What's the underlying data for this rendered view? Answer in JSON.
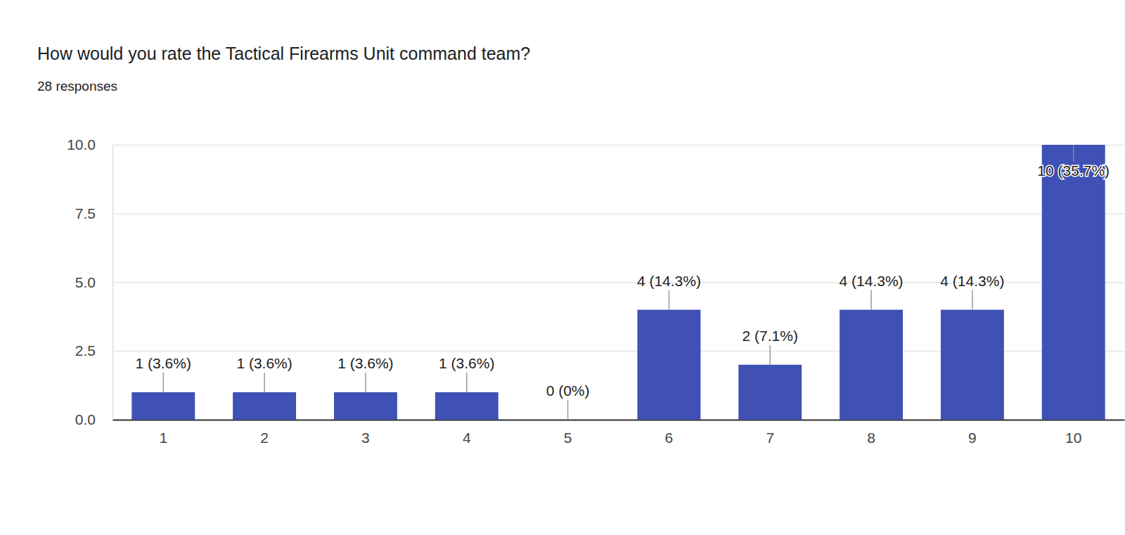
{
  "chart_data": {
    "type": "bar",
    "title": "How would you rate the Tactical Firearms Unit command team?",
    "subtitle": "28 responses",
    "categories": [
      "1",
      "2",
      "3",
      "4",
      "5",
      "6",
      "7",
      "8",
      "9",
      "10"
    ],
    "values": [
      1,
      1,
      1,
      1,
      0,
      4,
      2,
      4,
      4,
      10
    ],
    "value_labels": [
      "1 (3.6%)",
      "1 (3.6%)",
      "1 (3.6%)",
      "1 (3.6%)",
      "0 (0%)",
      "4 (14.3%)",
      "2 (7.1%)",
      "4 (14.3%)",
      "4 (14.3%)",
      "10 (35.7%)"
    ],
    "color": "#3f51b5",
    "ylim": [
      0,
      10
    ],
    "yticks": [
      {
        "value": 0,
        "label": "0.0"
      },
      2.5,
      {
        "value": 5,
        "label": "5.0"
      },
      7.5,
      {
        "value": 10,
        "label": "10.0"
      }
    ],
    "grid": true,
    "data_labels": true
  }
}
